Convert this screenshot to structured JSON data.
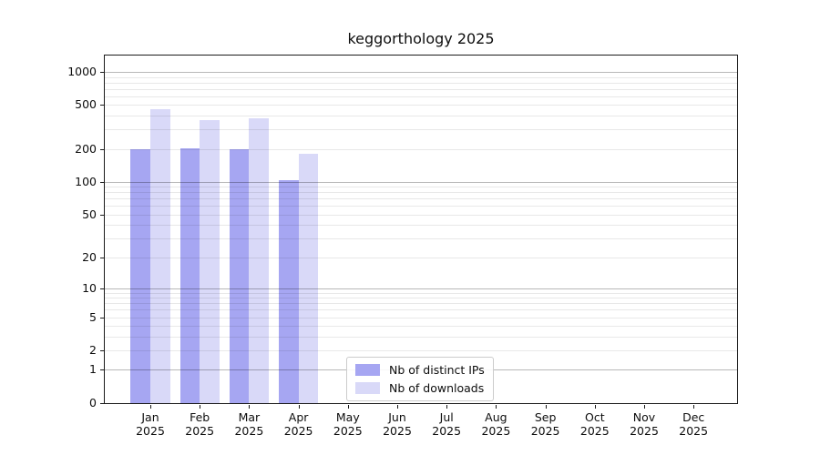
{
  "title": "keggorthology 2025",
  "chart_data": {
    "type": "bar",
    "title": "keggorthology 2025",
    "scale": "log10(1+y)",
    "ylim": [
      0,
      1435
    ],
    "yticks": [
      0,
      1,
      2,
      5,
      10,
      20,
      50,
      100,
      200,
      500,
      1000
    ],
    "major_gridlines": [
      1,
      10,
      100,
      1000
    ],
    "grid": "horizontal, major and minor, drawn over bars",
    "x_categories": [
      "Jan",
      "Feb",
      "Mar",
      "Apr",
      "May",
      "Jun",
      "Jul",
      "Aug",
      "Sep",
      "Oct",
      "Nov",
      "Dec"
    ],
    "x_year": "2025",
    "series": [
      {
        "name": "Nb of distinct IPs",
        "color": "#a6a6f2",
        "values": [
          200,
          202,
          197,
          104,
          0,
          0,
          0,
          0,
          0,
          0,
          0,
          0
        ]
      },
      {
        "name": "Nb of downloads",
        "color": "#d9d9f8",
        "values": [
          460,
          367,
          380,
          182,
          0,
          0,
          0,
          0,
          0,
          0,
          0,
          0
        ]
      }
    ],
    "legend_position": "inside bottom-center"
  },
  "colors": {
    "major_grid": "rgba(0,0,0,0.28)",
    "minor_grid": "rgba(0,0,0,0.09)",
    "spine": "#1a1a1a",
    "text": "#0d0d0d"
  }
}
